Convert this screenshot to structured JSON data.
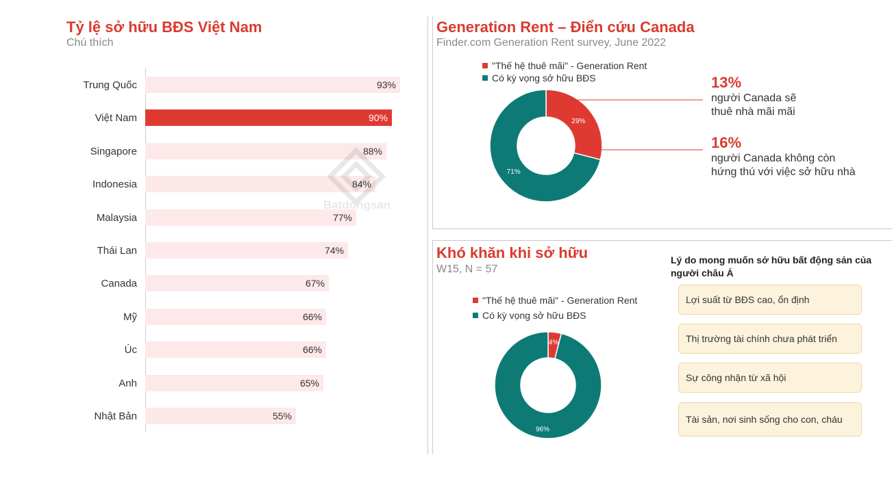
{
  "colors": {
    "accent": "#df3a32",
    "teal": "#0e7a76",
    "bar_bg": "#fde9e9",
    "title": "#d93b2f"
  },
  "left": {
    "title": "Tỷ lệ sở hữu BĐS Việt Nam",
    "subtitle": "Chú thích",
    "watermark": "Batdongsan"
  },
  "chart_data": [
    {
      "type": "bar",
      "orientation": "horizontal",
      "title": "Tỷ lệ sở hữu BĐS Việt Nam",
      "subtitle": "Chú thích",
      "categories": [
        "Trung Quốc",
        "Việt Nam",
        "Singapore",
        "Indonesia",
        "Malaysia",
        "Thái Lan",
        "Canada",
        "Mỹ",
        "Úc",
        "Anh",
        "Nhật Bản"
      ],
      "values": [
        93,
        90,
        88,
        84,
        77,
        74,
        67,
        66,
        66,
        65,
        55
      ],
      "value_labels": [
        "93%",
        "90%",
        "88%",
        "84%",
        "77%",
        "74%",
        "67%",
        "66%",
        "66%",
        "65%",
        "55%"
      ],
      "highlight": "Việt Nam",
      "xlim": [
        0,
        100
      ]
    },
    {
      "type": "pie",
      "variant": "donut",
      "title": "Generation Rent – Điển cứu Canada",
      "subtitle": "Finder.com Generation Rent survey, June 2022",
      "labels": [
        "\"Thế hệ thuê mãi\" - Generation Rent",
        "Có kỳ vọng sở hữu BĐS"
      ],
      "values": [
        29,
        71
      ],
      "value_labels": [
        "29%",
        "71%"
      ]
    },
    {
      "type": "pie",
      "variant": "donut",
      "title": "Khó khăn khi sở hữu",
      "subtitle": "W15, N = 57",
      "labels": [
        "\"Thế hệ thuê mãi\" - Generation Rent",
        "Có kỳ vọng sở hữu BĐS"
      ],
      "values": [
        4,
        96
      ],
      "value_labels": [
        "4%",
        "96%"
      ]
    }
  ],
  "top_right": {
    "title": "Generation Rent – Điển cứu Canada",
    "subtitle": "Finder.com Generation Rent survey, June 2022",
    "legend": [
      "\"Thế hệ thuê mãi\" - Generation Rent",
      "Có kỳ vọng sở hữu BĐS"
    ],
    "stats": [
      {
        "value": "13%",
        "line1": "người Canada sẽ",
        "line2": "thuê nhà mãi mãi"
      },
      {
        "value": "16%",
        "line1": "người Canada không còn",
        "line2": "hứng thú với việc sở hữu nhà"
      }
    ]
  },
  "bottom_right": {
    "title": "Khó khăn khi sở hữu",
    "subtitle": "W15, N = 57",
    "legend": [
      "\"Thế hệ thuê mãi\" - Generation Rent",
      "Có kỳ vọng sở hữu BĐS"
    ],
    "reasons_title_line1": "Lý do mong muốn sở hữu bất động sản của",
    "reasons_title_line2": "người châu Á",
    "reasons": [
      "Lợi suất từ BĐS cao, ổn định",
      "Thị trường tài chính chưa phát triển",
      "Sự công nhận từ xã hội",
      "Tài sản, nơi sinh sống cho con, cháu"
    ]
  }
}
